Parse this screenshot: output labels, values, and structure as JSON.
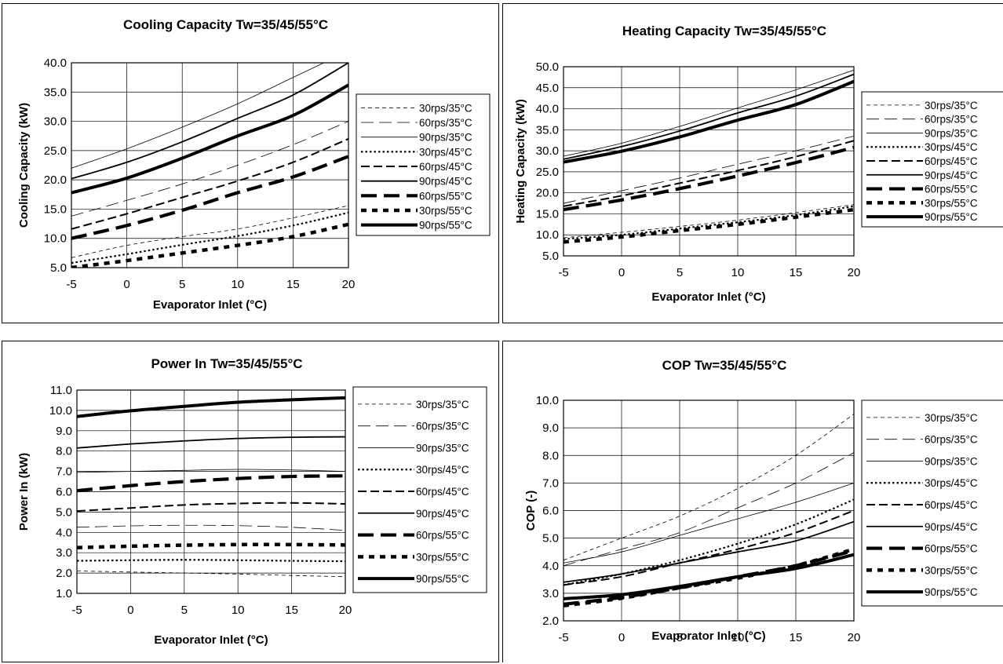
{
  "chart_data": [
    {
      "type": "line",
      "title": "Cooling Capacity Tw=35/45/55°C",
      "xlabel": "Evaporator Inlet (°C)",
      "ylabel": "Cooling Capacity (kW)",
      "xlim": [
        -5,
        20
      ],
      "ylim": [
        5.0,
        40.0
      ],
      "xticks": [
        "-5",
        "0",
        "5",
        "10",
        "15",
        "20"
      ],
      "yticks": [
        "5.0",
        "10.0",
        "15.0",
        "20.0",
        "25.0",
        "30.0",
        "35.0",
        "40.0"
      ],
      "grid": true,
      "legend_position": "right",
      "x": [
        -5,
        0,
        5,
        10,
        15,
        20
      ],
      "series": [
        {
          "name": "30rps/35°C",
          "style": "thin-dash",
          "values": [
            6.7,
            8.8,
            10.3,
            11.6,
            13.5,
            15.6
          ]
        },
        {
          "name": "60rps/35°C",
          "style": "thin-longdash",
          "values": [
            13.8,
            16.5,
            19.3,
            22.5,
            26.0,
            30.0
          ]
        },
        {
          "name": "90rps/35°C",
          "style": "thin-solid",
          "values": [
            22.0,
            25.3,
            29.0,
            33.0,
            37.5,
            42.0
          ]
        },
        {
          "name": "30rps/45°C",
          "style": "dot",
          "values": [
            5.8,
            7.3,
            8.9,
            10.4,
            12.2,
            14.4
          ]
        },
        {
          "name": "60rps/45°C",
          "style": "dash",
          "values": [
            11.6,
            14.2,
            17.0,
            19.8,
            23.0,
            27.0
          ]
        },
        {
          "name": "90rps/45°C",
          "style": "solid",
          "values": [
            20.2,
            23.0,
            26.5,
            30.5,
            34.5,
            40.0
          ]
        },
        {
          "name": "60rps/55°C",
          "style": "bold-dash",
          "values": [
            10.0,
            12.2,
            14.8,
            17.8,
            20.5,
            24.0
          ]
        },
        {
          "name": "30rps/55°C",
          "style": "bold-dot",
          "values": [
            5.0,
            6.2,
            7.5,
            8.8,
            10.3,
            12.4
          ]
        },
        {
          "name": "90rps/55°C",
          "style": "bold-solid",
          "values": [
            17.8,
            20.3,
            23.7,
            27.5,
            31.0,
            36.2
          ]
        }
      ]
    },
    {
      "type": "line",
      "title": "Heating Capacity Tw=35/45/55°C",
      "xlabel": "Evaporator Inlet (°C)",
      "ylabel": "Heating Capacity (kW)",
      "xlim": [
        -5,
        20
      ],
      "ylim": [
        5.0,
        50.0
      ],
      "xticks": [
        "-5",
        "0",
        "5",
        "10",
        "15",
        "20"
      ],
      "yticks": [
        "5.0",
        "10.0",
        "15.0",
        "20.0",
        "25.0",
        "30.0",
        "35.0",
        "40.0",
        "45.0",
        "50.0"
      ],
      "grid": true,
      "legend_position": "right",
      "x": [
        -5,
        0,
        5,
        10,
        15,
        20
      ],
      "series": [
        {
          "name": "30rps/35°C",
          "style": "thin-dash",
          "values": [
            9.3,
            10.6,
            12.0,
            13.5,
            15.3,
            17.2
          ]
        },
        {
          "name": "60rps/35°C",
          "style": "thin-longdash",
          "values": [
            17.5,
            20.5,
            23.5,
            26.8,
            30.0,
            33.5
          ]
        },
        {
          "name": "90rps/35°C",
          "style": "thin-solid",
          "values": [
            28.7,
            31.8,
            35.8,
            40.2,
            44.5,
            49.2
          ]
        },
        {
          "name": "30rps/45°C",
          "style": "dot",
          "values": [
            9.0,
            10.0,
            11.5,
            13.0,
            14.7,
            16.8
          ]
        },
        {
          "name": "60rps/45°C",
          "style": "dash",
          "values": [
            16.8,
            19.3,
            22.3,
            25.3,
            28.6,
            32.4
          ]
        },
        {
          "name": "90rps/45°C",
          "style": "solid",
          "values": [
            28.0,
            31.0,
            34.7,
            39.0,
            43.0,
            48.2
          ]
        },
        {
          "name": "60rps/55°C",
          "style": "bold-dash",
          "values": [
            16.0,
            18.3,
            21.0,
            24.0,
            27.2,
            30.8
          ]
        },
        {
          "name": "30rps/55°C",
          "style": "bold-dot",
          "values": [
            8.3,
            9.5,
            11.0,
            12.5,
            14.2,
            16.0
          ]
        },
        {
          "name": "90rps/55°C",
          "style": "bold-solid",
          "values": [
            27.3,
            29.9,
            33.3,
            37.3,
            41.0,
            46.5
          ]
        }
      ]
    },
    {
      "type": "line",
      "title": "Power In Tw=35/45/55°C",
      "xlabel": "Evaporator Inlet (°C)",
      "ylabel": "Power In (kW)",
      "xlim": [
        -5,
        20
      ],
      "ylim": [
        1.0,
        11.0
      ],
      "xticks": [
        "-5",
        "0",
        "5",
        "10",
        "15",
        "20"
      ],
      "yticks": [
        "1.0",
        "2.0",
        "3.0",
        "4.0",
        "5.0",
        "6.0",
        "7.0",
        "8.0",
        "9.0",
        "10.0",
        "11.0"
      ],
      "grid": true,
      "legend_position": "right",
      "x": [
        -5,
        0,
        5,
        10,
        15,
        20
      ],
      "series": [
        {
          "name": "30rps/35°C",
          "style": "thin-dash",
          "values": [
            2.1,
            2.05,
            2.0,
            1.95,
            1.88,
            1.82
          ]
        },
        {
          "name": "60rps/35°C",
          "style": "thin-longdash",
          "values": [
            4.25,
            4.32,
            4.35,
            4.33,
            4.25,
            4.1
          ]
        },
        {
          "name": "90rps/35°C",
          "style": "thin-solid",
          "values": [
            6.95,
            7.0,
            7.05,
            7.1,
            7.07,
            7.0
          ]
        },
        {
          "name": "30rps/45°C",
          "style": "dot",
          "values": [
            2.6,
            2.63,
            2.65,
            2.63,
            2.6,
            2.58
          ]
        },
        {
          "name": "60rps/45°C",
          "style": "dash",
          "values": [
            5.05,
            5.2,
            5.35,
            5.42,
            5.45,
            5.4
          ]
        },
        {
          "name": "90rps/45°C",
          "style": "solid",
          "values": [
            8.15,
            8.35,
            8.5,
            8.62,
            8.68,
            8.7
          ]
        },
        {
          "name": "60rps/55°C",
          "style": "bold-dash",
          "values": [
            6.05,
            6.3,
            6.5,
            6.65,
            6.75,
            6.78
          ]
        },
        {
          "name": "30rps/55°C",
          "style": "bold-dot",
          "values": [
            3.25,
            3.32,
            3.37,
            3.4,
            3.4,
            3.38
          ]
        },
        {
          "name": "90rps/55°C",
          "style": "bold-solid",
          "values": [
            9.7,
            9.98,
            10.2,
            10.4,
            10.52,
            10.62
          ]
        }
      ]
    },
    {
      "type": "line",
      "title": "COP  Tw=35/45/55°C",
      "xlabel": "Evaporator Inlet (°C)",
      "ylabel": "COP (-)",
      "xlim": [
        -5,
        20
      ],
      "ylim": [
        2.0,
        10.0
      ],
      "xticks": [
        "-5",
        "0",
        "5",
        "10",
        "15",
        "20"
      ],
      "yticks": [
        "2.0",
        "3.0",
        "4.0",
        "5.0",
        "6.0",
        "7.0",
        "8.0",
        "9.0",
        "10.0"
      ],
      "grid": true,
      "legend_position": "right",
      "x": [
        -5,
        0,
        5,
        10,
        15,
        20
      ],
      "series": [
        {
          "name": "30rps/35°C",
          "style": "thin-dash",
          "values": [
            4.2,
            5.0,
            5.8,
            6.8,
            8.0,
            9.5
          ]
        },
        {
          "name": "60rps/35°C",
          "style": "thin-longdash",
          "values": [
            4.0,
            4.6,
            5.2,
            6.1,
            7.0,
            8.1
          ]
        },
        {
          "name": "90rps/35°C",
          "style": "thin-solid",
          "values": [
            4.1,
            4.5,
            5.1,
            5.7,
            6.3,
            7.0
          ]
        },
        {
          "name": "30rps/45°C",
          "style": "dot",
          "values": [
            3.3,
            3.7,
            4.2,
            4.8,
            5.5,
            6.4
          ]
        },
        {
          "name": "60rps/45°C",
          "style": "dash",
          "values": [
            3.3,
            3.6,
            4.1,
            4.6,
            5.2,
            6.0
          ]
        },
        {
          "name": "90rps/45°C",
          "style": "solid",
          "values": [
            3.4,
            3.7,
            4.1,
            4.5,
            4.9,
            5.6
          ]
        },
        {
          "name": "60rps/55°C",
          "style": "bold-dash",
          "values": [
            2.6,
            2.85,
            3.2,
            3.6,
            4.0,
            4.55
          ]
        },
        {
          "name": "30rps/55°C",
          "style": "bold-dot",
          "values": [
            2.55,
            2.82,
            3.2,
            3.55,
            4.0,
            4.6
          ]
        },
        {
          "name": "90rps/55°C",
          "style": "bold-solid",
          "values": [
            2.8,
            2.95,
            3.25,
            3.6,
            3.9,
            4.4
          ]
        }
      ]
    }
  ]
}
